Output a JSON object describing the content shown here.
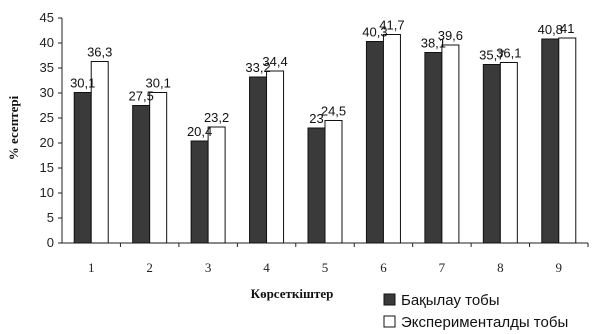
{
  "chart_data": {
    "type": "bar",
    "categories": [
      "1",
      "2",
      "3",
      "4",
      "5",
      "6",
      "7",
      "8",
      "9"
    ],
    "series": [
      {
        "name": "Бақылау тобы",
        "values": [
          30.1,
          27.5,
          20.4,
          33.2,
          23,
          40.3,
          38.1,
          35.7,
          40.8
        ],
        "labels": [
          "30,1",
          "27,5",
          "20,4",
          "33,2",
          "23",
          "40,3",
          "38,1",
          "35,7",
          "40,8"
        ],
        "color": "#3a3a3a"
      },
      {
        "name": "Экспериментaлды тобы",
        "values": [
          36.3,
          30.1,
          23.2,
          34.4,
          24.5,
          41.7,
          39.6,
          36.1,
          41
        ],
        "labels": [
          "36,3",
          "30,1",
          "23,2",
          "34,4",
          "24,5",
          "41,7",
          "39,6",
          "36,1",
          "41"
        ],
        "color": "#ffffff"
      }
    ],
    "xlabel": "Көрсеткіштер",
    "ylabel": "% есептері",
    "ylim": [
      0,
      45
    ],
    "yticks": [
      "0",
      "5",
      "10",
      "15",
      "20",
      "25",
      "30",
      "35",
      "40",
      "45"
    ],
    "grid": false,
    "legend_position": "bottom-right"
  }
}
